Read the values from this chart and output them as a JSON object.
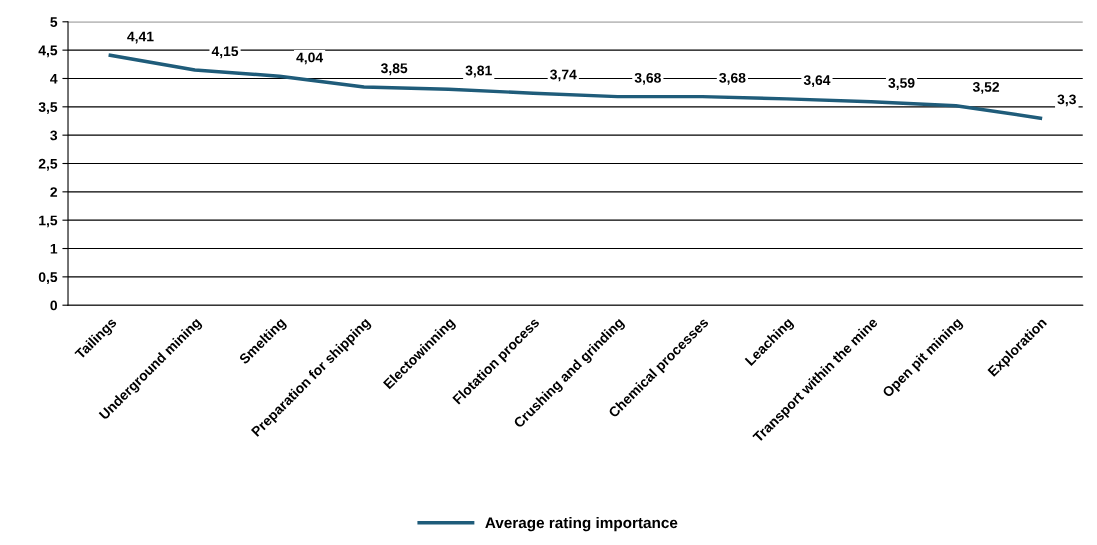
{
  "chart_data": {
    "type": "line",
    "categories": [
      "Tailings",
      "Underground mining",
      "Smelting",
      "Preparation for shipping",
      "Electowinning",
      "Flotation process",
      "Crushing and grinding",
      "Chemical processes",
      "Leaching",
      "Transport within the mine",
      "Open pit mining",
      "Exploration"
    ],
    "series": [
      {
        "name": "Average rating importance",
        "color": "#1f5c7a",
        "values": [
          4.41,
          4.15,
          4.04,
          3.85,
          3.81,
          3.74,
          3.68,
          3.68,
          3.64,
          3.59,
          3.52,
          3.3
        ],
        "value_labels": [
          "4,41",
          "4,15",
          "4,04",
          "3,85",
          "3,81",
          "3,74",
          "3,68",
          "3,68",
          "3,64",
          "3,59",
          "3,52",
          "3,3"
        ]
      }
    ],
    "ylim": [
      0,
      5
    ],
    "yticks": [
      0,
      {
        "value": 0.5,
        "label": "0,5"
      },
      1,
      {
        "value": 1.5,
        "label": "1,5"
      },
      2,
      {
        "value": 2.5,
        "label": "2,5"
      },
      3,
      {
        "value": 3.5,
        "label": "3,5"
      },
      4,
      {
        "value": 4.5,
        "label": "4,5"
      },
      5
    ],
    "grid": "y",
    "legend": "bottom",
    "marker": "none",
    "line_style": "solid"
  }
}
